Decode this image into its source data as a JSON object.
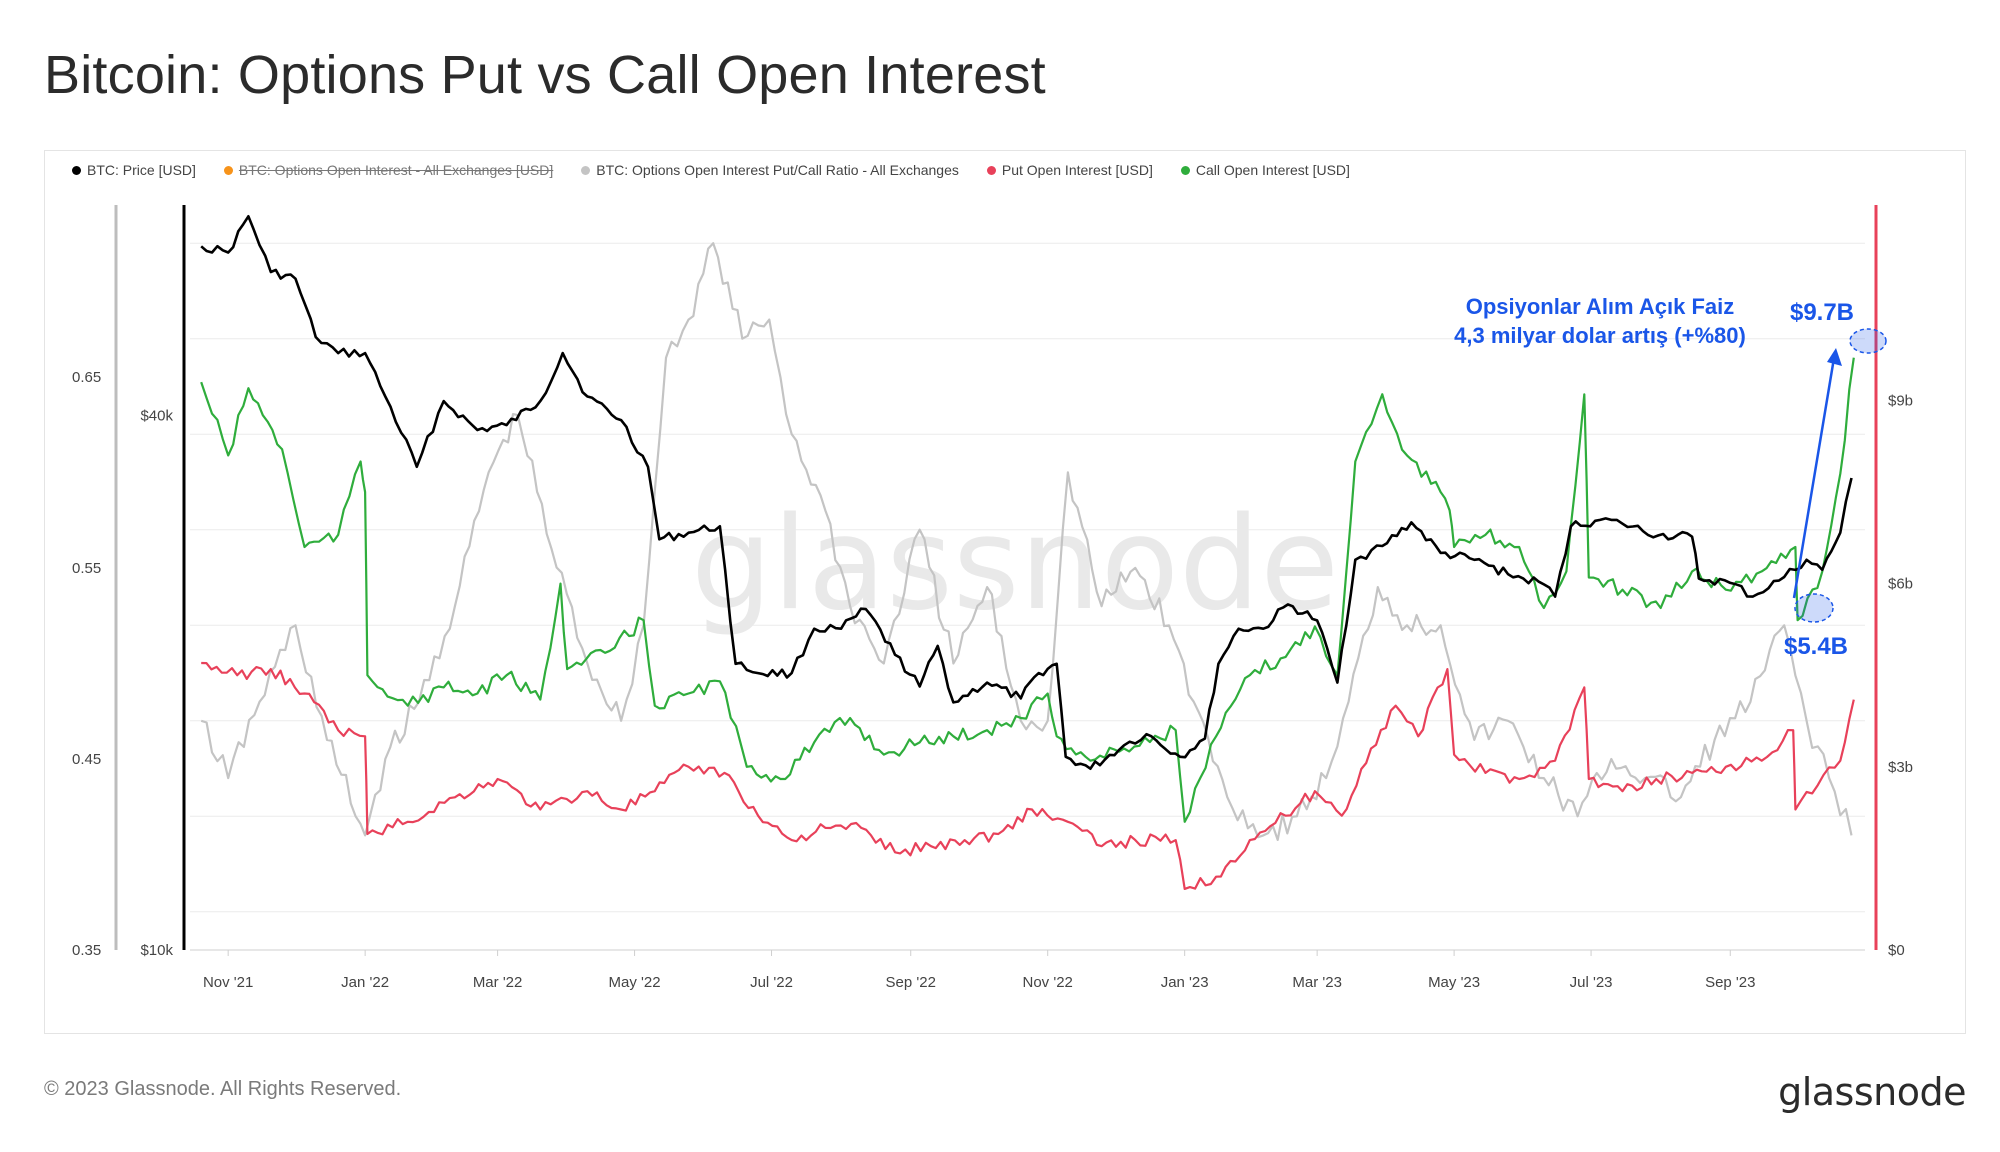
{
  "title": "Bitcoin: Options Put vs Call Open Interest",
  "legend": [
    {
      "label": "BTC: Price [USD]",
      "color": "#000000",
      "disabled": false
    },
    {
      "label": "BTC: Options Open Interest - All Exchanges [USD]",
      "color": "#f7931a",
      "disabled": true
    },
    {
      "label": "BTC: Options Open Interest Put/Call Ratio - All Exchanges",
      "color": "#c4c4c4",
      "disabled": false
    },
    {
      "label": "Put Open Interest [USD]",
      "color": "#e8415a",
      "disabled": false
    },
    {
      "label": "Call Open Interest [USD]",
      "color": "#2fad3c",
      "disabled": false
    }
  ],
  "watermark": "glassnode",
  "footer": {
    "copyright": "© 2023 Glassnode. All Rights Reserved.",
    "logo": "glassnode"
  },
  "annotation": {
    "line1": "Opsiyonlar Alım Açık Faiz",
    "line2": "4,3 milyar dolar artış (+%80)",
    "high_label": "$9.7B",
    "low_label": "$5.4B",
    "color": "#1a56e8"
  },
  "chart_data": {
    "type": "line",
    "x_ticks": [
      "Nov '21",
      "Jan '22",
      "Mar '22",
      "May '22",
      "Jul '22",
      "Sep '22",
      "Nov '22",
      "Jan '23",
      "Mar '23",
      "May '23",
      "Jul '23",
      "Sep '23"
    ],
    "axes": {
      "ratio": {
        "ticks": [
          "0.65",
          "0.55",
          "0.45",
          "0.35"
        ],
        "range": [
          0.35,
          0.74
        ]
      },
      "price": {
        "ticks": [
          "$40k",
          "$10k"
        ],
        "scale": "log",
        "range": [
          10000,
          69000
        ]
      },
      "oi": {
        "ticks": [
          "$9b",
          "$6b",
          "$3b",
          "$0"
        ],
        "range": [
          0,
          12.2
        ]
      }
    },
    "series": [
      {
        "name": "BTC: Price [USD]",
        "color": "#000000",
        "axis": "price",
        "points": [
          [
            "2021-10-20",
            62000
          ],
          [
            "2021-11-01",
            61000
          ],
          [
            "2021-11-10",
            67000
          ],
          [
            "2021-11-20",
            58000
          ],
          [
            "2021-12-01",
            57000
          ],
          [
            "2021-12-10",
            49000
          ],
          [
            "2021-12-20",
            47000
          ],
          [
            "2022-01-01",
            47000
          ],
          [
            "2022-01-10",
            42000
          ],
          [
            "2022-01-24",
            35000
          ],
          [
            "2022-02-05",
            41500
          ],
          [
            "2022-02-20",
            38500
          ],
          [
            "2022-03-05",
            39000
          ],
          [
            "2022-03-20",
            41500
          ],
          [
            "2022-03-30",
            47000
          ],
          [
            "2022-04-10",
            42000
          ],
          [
            "2022-04-25",
            39500
          ],
          [
            "2022-05-07",
            35000
          ],
          [
            "2022-05-12",
            29000
          ],
          [
            "2022-05-25",
            29500
          ],
          [
            "2022-06-08",
            30000
          ],
          [
            "2022-06-15",
            21000
          ],
          [
            "2022-06-25",
            20500
          ],
          [
            "2022-07-10",
            20500
          ],
          [
            "2022-07-20",
            23000
          ],
          [
            "2022-08-01",
            23000
          ],
          [
            "2022-08-12",
            24200
          ],
          [
            "2022-08-25",
            21500
          ],
          [
            "2022-09-05",
            19800
          ],
          [
            "2022-09-13",
            22000
          ],
          [
            "2022-09-20",
            19000
          ],
          [
            "2022-10-05",
            20000
          ],
          [
            "2022-10-20",
            19200
          ],
          [
            "2022-10-28",
            20500
          ],
          [
            "2022-11-05",
            21000
          ],
          [
            "2022-11-09",
            16500
          ],
          [
            "2022-11-20",
            16000
          ],
          [
            "2022-12-05",
            17000
          ],
          [
            "2022-12-15",
            17500
          ],
          [
            "2022-12-30",
            16500
          ],
          [
            "2023-01-10",
            17300
          ],
          [
            "2023-01-16",
            21000
          ],
          [
            "2023-01-25",
            23000
          ],
          [
            "2023-02-05",
            23000
          ],
          [
            "2023-02-16",
            24500
          ],
          [
            "2023-03-01",
            23500
          ],
          [
            "2023-03-10",
            20000
          ],
          [
            "2023-03-18",
            27500
          ],
          [
            "2023-03-30",
            28500
          ],
          [
            "2023-04-12",
            30300
          ],
          [
            "2023-04-25",
            28000
          ],
          [
            "2023-05-10",
            27500
          ],
          [
            "2023-05-25",
            26500
          ],
          [
            "2023-06-10",
            25800
          ],
          [
            "2023-06-15",
            25000
          ],
          [
            "2023-06-22",
            30000
          ],
          [
            "2023-07-05",
            30500
          ],
          [
            "2023-07-15",
            30200
          ],
          [
            "2023-07-31",
            29300
          ],
          [
            "2023-08-15",
            29200
          ],
          [
            "2023-08-18",
            26200
          ],
          [
            "2023-09-01",
            25900
          ],
          [
            "2023-09-11",
            25000
          ],
          [
            "2023-09-25",
            26300
          ],
          [
            "2023-10-05",
            27500
          ],
          [
            "2023-10-12",
            26800
          ],
          [
            "2023-10-20",
            29500
          ],
          [
            "2023-10-25",
            34000
          ]
        ]
      },
      {
        "name": "BTC: Options Open Interest Put/Call Ratio - All Exchanges",
        "color": "#c4c4c4",
        "axis": "ratio",
        "points": [
          [
            "2021-10-20",
            0.47
          ],
          [
            "2021-11-01",
            0.44
          ],
          [
            "2021-11-15",
            0.48
          ],
          [
            "2021-12-01",
            0.52
          ],
          [
            "2021-12-15",
            0.46
          ],
          [
            "2022-01-01",
            0.41
          ],
          [
            "2022-01-10",
            0.45
          ],
          [
            "2022-01-25",
            0.48
          ],
          [
            "2022-02-10",
            0.53
          ],
          [
            "2022-02-25",
            0.6
          ],
          [
            "2022-03-10",
            0.63
          ],
          [
            "2022-03-25",
            0.56
          ],
          [
            "2022-04-10",
            0.5
          ],
          [
            "2022-04-25",
            0.47
          ],
          [
            "2022-05-05",
            0.52
          ],
          [
            "2022-05-15",
            0.66
          ],
          [
            "2022-05-25",
            0.68
          ],
          [
            "2022-06-05",
            0.72
          ],
          [
            "2022-06-18",
            0.67
          ],
          [
            "2022-06-30",
            0.68
          ],
          [
            "2022-07-10",
            0.62
          ],
          [
            "2022-07-25",
            0.58
          ],
          [
            "2022-08-05",
            0.53
          ],
          [
            "2022-08-20",
            0.5
          ],
          [
            "2022-09-05",
            0.57
          ],
          [
            "2022-09-20",
            0.5
          ],
          [
            "2022-10-05",
            0.54
          ],
          [
            "2022-10-20",
            0.47
          ],
          [
            "2022-11-01",
            0.47
          ],
          [
            "2022-11-10",
            0.6
          ],
          [
            "2022-11-25",
            0.53
          ],
          [
            "2022-12-10",
            0.55
          ],
          [
            "2022-12-25",
            0.52
          ],
          [
            "2023-01-05",
            0.48
          ],
          [
            "2023-01-20",
            0.43
          ],
          [
            "2023-02-05",
            0.41
          ],
          [
            "2023-02-20",
            0.42
          ],
          [
            "2023-03-05",
            0.44
          ],
          [
            "2023-03-15",
            0.48
          ],
          [
            "2023-03-28",
            0.54
          ],
          [
            "2023-04-10",
            0.52
          ],
          [
            "2023-04-25",
            0.52
          ],
          [
            "2023-05-10",
            0.46
          ],
          [
            "2023-05-25",
            0.47
          ],
          [
            "2023-06-10",
            0.44
          ],
          [
            "2023-06-25",
            0.42
          ],
          [
            "2023-07-10",
            0.45
          ],
          [
            "2023-07-25",
            0.44
          ],
          [
            "2023-08-10",
            0.43
          ],
          [
            "2023-08-25",
            0.46
          ],
          [
            "2023-09-10",
            0.48
          ],
          [
            "2023-09-25",
            0.52
          ],
          [
            "2023-10-05",
            0.47
          ],
          [
            "2023-10-15",
            0.44
          ],
          [
            "2023-10-25",
            0.41
          ]
        ]
      },
      {
        "name": "Put Open Interest [USD]",
        "color": "#e8415a",
        "axis": "oi",
        "points": [
          [
            "2021-10-20",
            4.7
          ],
          [
            "2021-11-05",
            4.5
          ],
          [
            "2021-11-20",
            4.6
          ],
          [
            "2021-12-05",
            4.2
          ],
          [
            "2021-12-20",
            3.6
          ],
          [
            "2022-01-01",
            3.5
          ],
          [
            "2022-01-02",
            1.9
          ],
          [
            "2022-01-20",
            2.1
          ],
          [
            "2022-02-10",
            2.5
          ],
          [
            "2022-03-01",
            2.8
          ],
          [
            "2022-03-20",
            2.3
          ],
          [
            "2022-04-10",
            2.6
          ],
          [
            "2022-04-25",
            2.3
          ],
          [
            "2022-05-10",
            2.6
          ],
          [
            "2022-05-25",
            3.0
          ],
          [
            "2022-06-10",
            2.9
          ],
          [
            "2022-06-25",
            2.2
          ],
          [
            "2022-07-10",
            1.8
          ],
          [
            "2022-07-25",
            2.0
          ],
          [
            "2022-08-10",
            2.0
          ],
          [
            "2022-08-25",
            1.6
          ],
          [
            "2022-09-10",
            1.7
          ],
          [
            "2022-09-25",
            1.8
          ],
          [
            "2022-10-10",
            1.9
          ],
          [
            "2022-10-25",
            2.3
          ],
          [
            "2022-11-10",
            2.1
          ],
          [
            "2022-11-25",
            1.7
          ],
          [
            "2022-12-10",
            1.8
          ],
          [
            "2022-12-28",
            1.8
          ],
          [
            "2023-01-01",
            1.0
          ],
          [
            "2023-01-15",
            1.2
          ],
          [
            "2023-01-30",
            1.8
          ],
          [
            "2023-02-15",
            2.2
          ],
          [
            "2023-02-28",
            2.6
          ],
          [
            "2023-03-12",
            2.2
          ],
          [
            "2023-03-25",
            3.3
          ],
          [
            "2023-04-05",
            4.0
          ],
          [
            "2023-04-15",
            3.5
          ],
          [
            "2023-04-28",
            4.6
          ],
          [
            "2023-05-01",
            3.2
          ],
          [
            "2023-05-15",
            2.9
          ],
          [
            "2023-05-30",
            2.8
          ],
          [
            "2023-06-15",
            3.1
          ],
          [
            "2023-06-28",
            4.3
          ],
          [
            "2023-06-30",
            2.8
          ],
          [
            "2023-07-15",
            2.6
          ],
          [
            "2023-07-30",
            2.8
          ],
          [
            "2023-08-15",
            2.9
          ],
          [
            "2023-08-30",
            3.0
          ],
          [
            "2023-09-15",
            3.1
          ],
          [
            "2023-09-29",
            3.6
          ],
          [
            "2023-09-30",
            2.3
          ],
          [
            "2023-10-10",
            2.7
          ],
          [
            "2023-10-20",
            3.1
          ],
          [
            "2023-10-26",
            4.1
          ]
        ]
      },
      {
        "name": "Call Open Interest [USD]",
        "color": "#2fad3c",
        "axis": "oi",
        "points": [
          [
            "2021-10-20",
            9.3
          ],
          [
            "2021-11-01",
            8.1
          ],
          [
            "2021-11-10",
            9.2
          ],
          [
            "2021-11-25",
            8.2
          ],
          [
            "2021-12-05",
            6.6
          ],
          [
            "2021-12-20",
            6.8
          ],
          [
            "2021-12-30",
            8.0
          ],
          [
            "2022-01-01",
            7.5
          ],
          [
            "2022-01-02",
            4.5
          ],
          [
            "2022-01-20",
            4.0
          ],
          [
            "2022-02-05",
            4.3
          ],
          [
            "2022-02-20",
            4.2
          ],
          [
            "2022-03-05",
            4.5
          ],
          [
            "2022-03-20",
            4.1
          ],
          [
            "2022-03-29",
            6.0
          ],
          [
            "2022-04-01",
            4.6
          ],
          [
            "2022-04-20",
            4.9
          ],
          [
            "2022-05-05",
            5.4
          ],
          [
            "2022-05-10",
            4.0
          ],
          [
            "2022-05-25",
            4.2
          ],
          [
            "2022-06-08",
            4.4
          ],
          [
            "2022-06-20",
            3.0
          ],
          [
            "2022-07-05",
            2.8
          ],
          [
            "2022-07-20",
            3.4
          ],
          [
            "2022-08-05",
            3.8
          ],
          [
            "2022-08-20",
            3.2
          ],
          [
            "2022-09-05",
            3.4
          ],
          [
            "2022-09-20",
            3.5
          ],
          [
            "2022-10-05",
            3.6
          ],
          [
            "2022-10-20",
            3.8
          ],
          [
            "2022-11-01",
            4.2
          ],
          [
            "2022-11-05",
            3.5
          ],
          [
            "2022-11-20",
            3.1
          ],
          [
            "2022-12-05",
            3.3
          ],
          [
            "2022-12-28",
            3.6
          ],
          [
            "2023-01-01",
            2.1
          ],
          [
            "2023-01-15",
            3.5
          ],
          [
            "2023-01-30",
            4.5
          ],
          [
            "2023-02-15",
            4.8
          ],
          [
            "2023-02-28",
            5.3
          ],
          [
            "2023-03-10",
            4.5
          ],
          [
            "2023-03-18",
            8.0
          ],
          [
            "2023-03-30",
            9.1
          ],
          [
            "2023-04-10",
            8.1
          ],
          [
            "2023-04-25",
            7.5
          ],
          [
            "2023-04-29",
            7.2
          ],
          [
            "2023-05-01",
            6.6
          ],
          [
            "2023-05-15",
            6.8
          ],
          [
            "2023-05-30",
            6.6
          ],
          [
            "2023-06-10",
            5.6
          ],
          [
            "2023-06-20",
            6.2
          ],
          [
            "2023-06-28",
            9.1
          ],
          [
            "2023-06-30",
            6.1
          ],
          [
            "2023-07-15",
            5.9
          ],
          [
            "2023-08-01",
            5.6
          ],
          [
            "2023-08-15",
            6.2
          ],
          [
            "2023-08-30",
            5.9
          ],
          [
            "2023-09-15",
            6.2
          ],
          [
            "2023-09-30",
            6.6
          ],
          [
            "2023-10-01",
            5.4
          ],
          [
            "2023-10-12",
            6.2
          ],
          [
            "2023-10-20",
            7.8
          ],
          [
            "2023-10-26",
            9.7
          ]
        ]
      }
    ]
  }
}
